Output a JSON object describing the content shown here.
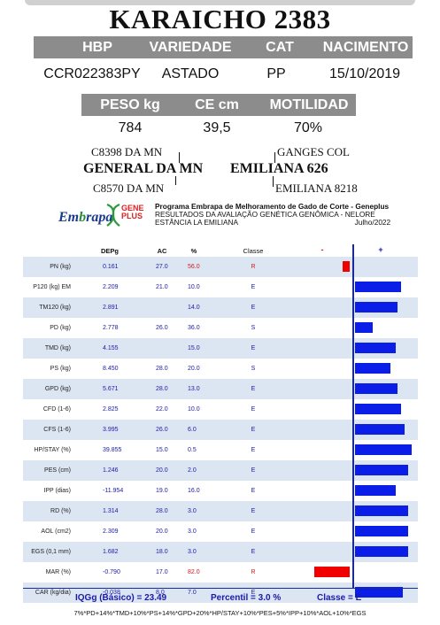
{
  "title": "KARAICHO 2383",
  "header": {
    "labels": [
      "HBP",
      "VARIEDADE",
      "CAT",
      "NACIMENTO"
    ],
    "values": [
      "CCR022383PY",
      "ASTADO",
      "PP",
      "15/10/2019"
    ]
  },
  "measures": {
    "labels": [
      "PESO kg",
      "CE cm",
      "MOTILIDAD"
    ],
    "values": [
      "784",
      "39,5",
      "70%"
    ]
  },
  "pedigree": {
    "sire": "GENERAL DA MN",
    "sire_sire": "C8398 DA MN",
    "sire_dam": "C8570 DA MN",
    "dam": "EMILIANA 626",
    "dam_sire": "GANGES COL",
    "dam_dam": "EMILIANA 8218"
  },
  "logo": {
    "embrapa_pre": "Em",
    "embrapa_accent": "b",
    "embrapa_post": "rapa",
    "gene": "GENE",
    "plus": "PLUS"
  },
  "program": {
    "line1": "Programa Embrapa de Melhoramento de Gado de Corte - Geneplus",
    "line2": "RESULTADOS DA AVALIAÇÃO GENÉTICA GENÔMICA - NELORE",
    "line3": "ESTÂNCIA LA EMILIANA",
    "date": "Julho/2022"
  },
  "table": {
    "columns": [
      "DEPg",
      "AC",
      "%",
      "Classe",
      "-",
      "+"
    ],
    "rows": [
      {
        "trait": "PN (kg)",
        "dep": "0.161",
        "ac": "27.0",
        "pct": "56.0",
        "classe": "R",
        "bar": -0.2
      },
      {
        "trait": "P120 (kg) EM",
        "dep": "2.209",
        "ac": "21.0",
        "pct": "10.0",
        "classe": "E",
        "bar": 1.3
      },
      {
        "trait": "TM120 (kg)",
        "dep": "2.891",
        "ac": "",
        "pct": "14.0",
        "classe": "E",
        "bar": 1.2
      },
      {
        "trait": "PD (kg)",
        "dep": "2.778",
        "ac": "26.0",
        "pct": "36.0",
        "classe": "S",
        "bar": 0.5
      },
      {
        "trait": "TMD (kg)",
        "dep": "4.155",
        "ac": "",
        "pct": "15.0",
        "classe": "E",
        "bar": 1.15
      },
      {
        "trait": "PS (kg)",
        "dep": "8.450",
        "ac": "28.0",
        "pct": "20.0",
        "classe": "S",
        "bar": 1.0
      },
      {
        "trait": "GPD (kg)",
        "dep": "5.671",
        "ac": "28.0",
        "pct": "13.0",
        "classe": "E",
        "bar": 1.2
      },
      {
        "trait": "CFD (1-6)",
        "dep": "2.825",
        "ac": "22.0",
        "pct": "10.0",
        "classe": "E",
        "bar": 1.3
      },
      {
        "trait": "CFS (1-6)",
        "dep": "3.995",
        "ac": "26.0",
        "pct": "6.0",
        "classe": "E",
        "bar": 1.4
      },
      {
        "trait": "HP/STAY (%)",
        "dep": "39.855",
        "ac": "15.0",
        "pct": "0.5",
        "classe": "E",
        "bar": 1.6
      },
      {
        "trait": "PES (cm)",
        "dep": "1.246",
        "ac": "20.0",
        "pct": "2.0",
        "classe": "E",
        "bar": 1.5
      },
      {
        "trait": "IPP (dias)",
        "dep": "-11.954",
        "ac": "19.0",
        "pct": "16.0",
        "classe": "E",
        "bar": 1.15
      },
      {
        "trait": "RD (%)",
        "dep": "1.314",
        "ac": "28.0",
        "pct": "3.0",
        "classe": "E",
        "bar": 1.5
      },
      {
        "trait": "AOL (cm2)",
        "dep": "2.309",
        "ac": "20.0",
        "pct": "3.0",
        "classe": "E",
        "bar": 1.5
      },
      {
        "trait": "EGS (0,1 mm)",
        "dep": "1.682",
        "ac": "18.0",
        "pct": "3.0",
        "classe": "E",
        "bar": 1.5
      },
      {
        "trait": "MAR (%)",
        "dep": "-0.790",
        "ac": "17.0",
        "pct": "82.0",
        "classe": "R",
        "bar": -1.0
      },
      {
        "trait": "CAR (kg/dia)",
        "dep": "-0.038",
        "ac": "8.0",
        "pct": "7.0",
        "classe": "E",
        "bar": 1.35
      }
    ]
  },
  "summary": {
    "iqg": "IQGg (Básico) = 23.49",
    "percentil": "Percentil = 3.0 %",
    "classe": "Classe = E"
  },
  "formula": "7%*PD+14%*TMD+10%*PS+14%*GPD+20%*HP/STAY+10%*PES+5%*IPP+10%*AOL+10%*EGS"
}
